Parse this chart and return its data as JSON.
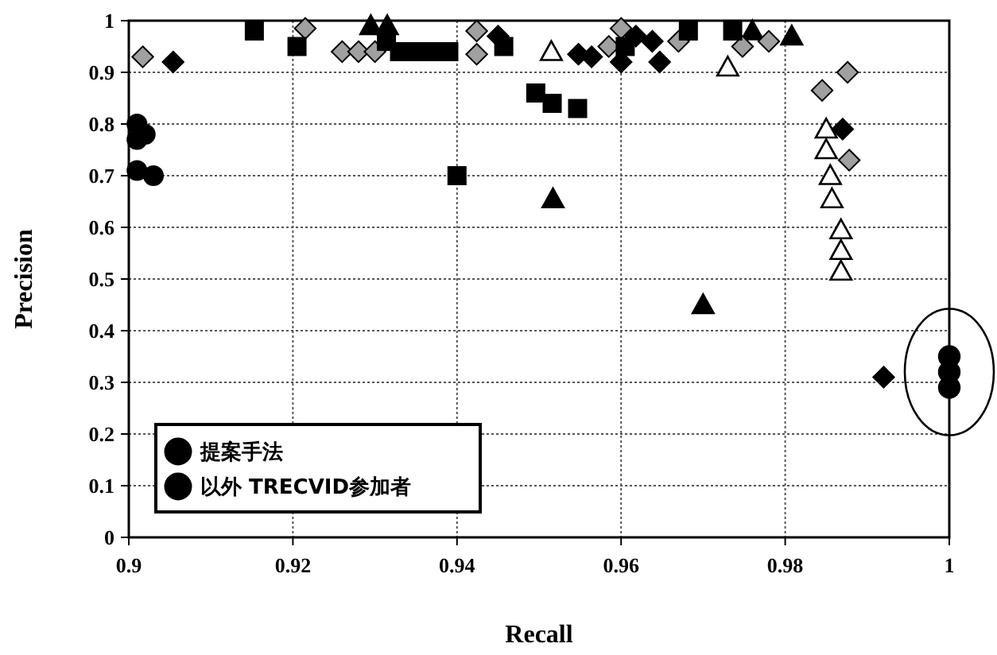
{
  "chart_data": {
    "type": "scatter",
    "xlabel": "Recall",
    "ylabel": "Precision",
    "xlim": [
      0.9,
      1
    ],
    "ylim": [
      0,
      1
    ],
    "xticks": [
      0.9,
      0.92,
      0.94,
      0.96,
      0.98,
      1
    ],
    "yticks": [
      0,
      0.1,
      0.2,
      0.3,
      0.4,
      0.5,
      0.6,
      0.7,
      0.8,
      0.9,
      1
    ],
    "grid": true,
    "legend": "bottom left",
    "series": [
      {
        "name": "提案手法",
        "color": "#000000",
        "marker": "circle",
        "x": [
          1,
          1,
          1
        ],
        "values": [
          0.35,
          0.32,
          0.29
        ]
      },
      {
        "name": "以外 TRECVID参加者",
        "color": "#000000",
        "marker": "circle",
        "x": [
          0.901,
          0.902,
          0.901,
          0.901,
          0.903
        ],
        "values": [
          0.8,
          0.78,
          0.77,
          0.71,
          0.7
        ]
      },
      {
        "color": "#000000",
        "marker": "square",
        "x": [
          0.9153,
          0.9205,
          0.9314,
          0.933,
          0.935,
          0.937,
          0.939,
          0.94,
          0.9457,
          0.9496,
          0.9516,
          0.9547,
          0.9605,
          0.9682,
          0.9736
        ],
        "values": [
          0.98,
          0.95,
          0.96,
          0.94,
          0.94,
          0.94,
          0.94,
          0.7,
          0.95,
          0.86,
          0.84,
          0.83,
          0.95,
          0.98,
          0.98
        ]
      },
      {
        "color": "#000000",
        "marker": "diamond",
        "x": [
          0.9054,
          0.945,
          0.9548,
          0.9564,
          0.96,
          0.9618,
          0.9638,
          0.9647,
          0.987,
          0.992
        ],
        "values": [
          0.92,
          0.97,
          0.935,
          0.93,
          0.92,
          0.97,
          0.96,
          0.92,
          0.79,
          0.31
        ]
      },
      {
        "color": "#a0a0a0",
        "marker": "diamond",
        "x": [
          0.9017,
          0.9215,
          0.926,
          0.928,
          0.93,
          0.9424,
          0.9424,
          0.9585,
          0.96,
          0.967,
          0.9748,
          0.978,
          0.9845,
          0.9876,
          0.9878
        ],
        "values": [
          0.93,
          0.985,
          0.94,
          0.94,
          0.94,
          0.98,
          0.935,
          0.95,
          0.985,
          0.96,
          0.95,
          0.96,
          0.865,
          0.9,
          0.73
        ]
      },
      {
        "color": "#000000",
        "marker": "triangle",
        "x": [
          0.9295,
          0.9315,
          0.9517,
          0.97,
          0.976,
          0.9808
        ],
        "values": [
          0.99,
          0.99,
          0.655,
          0.45,
          0.98,
          0.97
        ]
      },
      {
        "color": "#ffffff",
        "marker": "triangle",
        "x": [
          0.9515,
          0.973,
          0.985,
          0.985,
          0.9855,
          0.9857,
          0.9868,
          0.9868,
          0.9868
        ],
        "values": [
          0.94,
          0.91,
          0.79,
          0.75,
          0.7,
          0.655,
          0.595,
          0.555,
          0.515
        ]
      }
    ]
  }
}
